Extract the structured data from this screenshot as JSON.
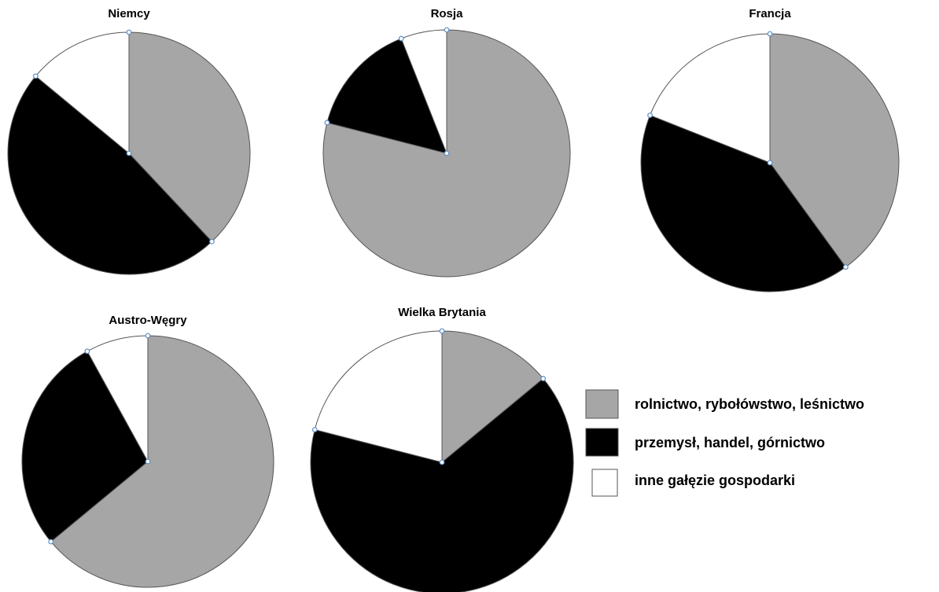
{
  "colors": {
    "agriculture": "#a6a6a6",
    "industry": "#000000",
    "other": "#ffffff",
    "handle": "#5b8fc7"
  },
  "legend": {
    "items": [
      {
        "key": "agriculture",
        "label": "rolnictwo, rybołówstwo, leśnictwo"
      },
      {
        "key": "industry",
        "label": "przemysł, handel, górnictwo"
      },
      {
        "key": "other",
        "label": "inne gałęzie gospodarki"
      }
    ]
  },
  "chart_data": [
    {
      "type": "pie",
      "title": "Niemcy",
      "slices": [
        {
          "key": "agriculture",
          "value": 38
        },
        {
          "key": "industry",
          "value": 48
        },
        {
          "key": "other",
          "value": 14
        }
      ]
    },
    {
      "type": "pie",
      "title": "Rosja",
      "slices": [
        {
          "key": "agriculture",
          "value": 79
        },
        {
          "key": "industry",
          "value": 15
        },
        {
          "key": "other",
          "value": 6
        }
      ]
    },
    {
      "type": "pie",
      "title": "Francja",
      "slices": [
        {
          "key": "agriculture",
          "value": 40
        },
        {
          "key": "industry",
          "value": 41
        },
        {
          "key": "other",
          "value": 19
        }
      ]
    },
    {
      "type": "pie",
      "title": "Austro-Węgry",
      "slices": [
        {
          "key": "agriculture",
          "value": 64
        },
        {
          "key": "industry",
          "value": 28
        },
        {
          "key": "other",
          "value": 8
        }
      ]
    },
    {
      "type": "pie",
      "title": "Wielka Brytania",
      "slices": [
        {
          "key": "agriculture",
          "value": 14
        },
        {
          "key": "industry",
          "value": 65
        },
        {
          "key": "other",
          "value": 21
        }
      ]
    }
  ]
}
